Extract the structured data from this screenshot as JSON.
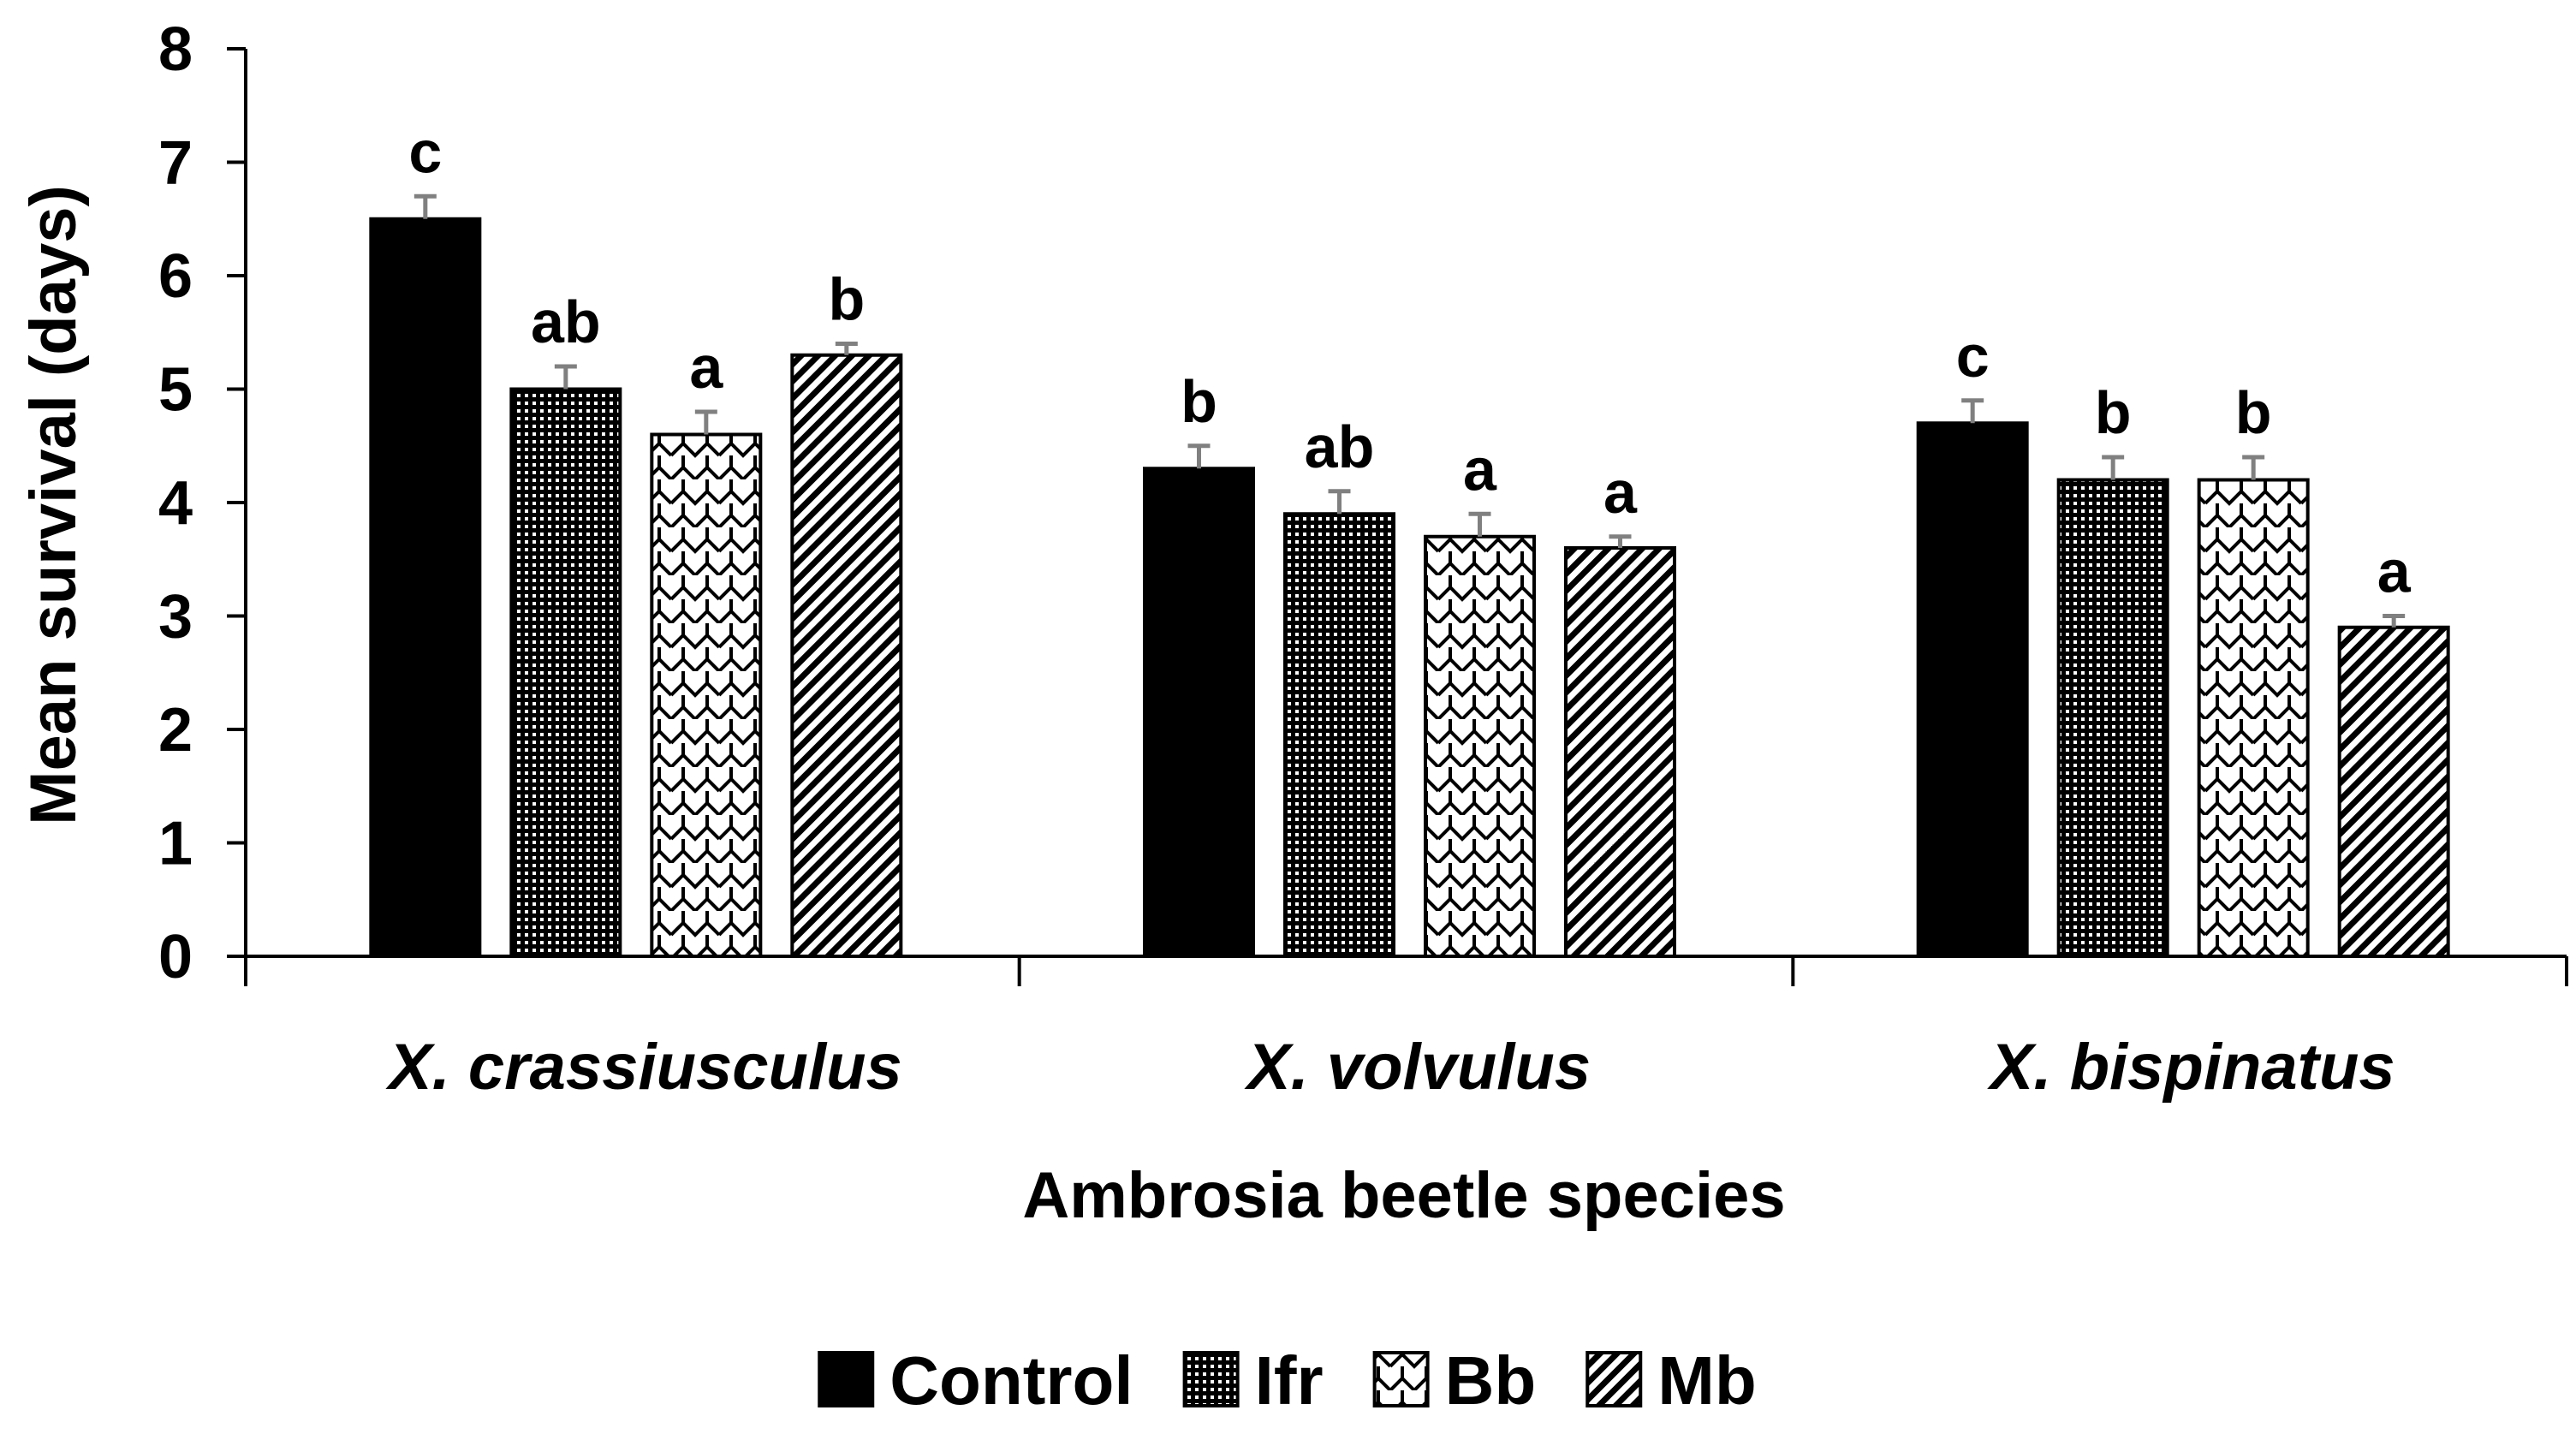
{
  "chart_data": {
    "type": "bar",
    "title": "",
    "xlabel": "Ambrosia beetle species",
    "ylabel": "Mean survival (days)",
    "ylim": [
      0,
      8
    ],
    "yticks": [
      "0",
      "1",
      "2",
      "3",
      "4",
      "5",
      "6",
      "7",
      "8"
    ],
    "categories": [
      "X. crassiusculus",
      "X. volvulus",
      "X. bispinatus"
    ],
    "series": [
      {
        "name": "Control",
        "pattern": "solid",
        "values": [
          6.5,
          4.3,
          4.7
        ],
        "errors": [
          0.2,
          0.2,
          0.2
        ],
        "letters": [
          "c",
          "b",
          "c"
        ]
      },
      {
        "name": "Ifr",
        "pattern": "dots",
        "values": [
          5.0,
          3.9,
          4.2
        ],
        "errors": [
          0.2,
          0.2,
          0.2
        ],
        "letters": [
          "ab",
          "ab",
          "b"
        ]
      },
      {
        "name": "Bb",
        "pattern": "zigzag",
        "values": [
          4.6,
          3.7,
          4.2
        ],
        "errors": [
          0.2,
          0.2,
          0.2
        ],
        "letters": [
          "a",
          "a",
          "b"
        ]
      },
      {
        "name": "Mb",
        "pattern": "diagonal",
        "values": [
          5.3,
          3.6,
          2.9
        ],
        "errors": [
          0.1,
          0.1,
          0.1
        ],
        "letters": [
          "b",
          "a",
          "a"
        ]
      }
    ],
    "legend_position": "bottom",
    "grid": false,
    "colors": {
      "bar_fill": "#000000",
      "bar_stroke": "#000000",
      "error_bar": "#808080",
      "background": "#ffffff"
    }
  }
}
